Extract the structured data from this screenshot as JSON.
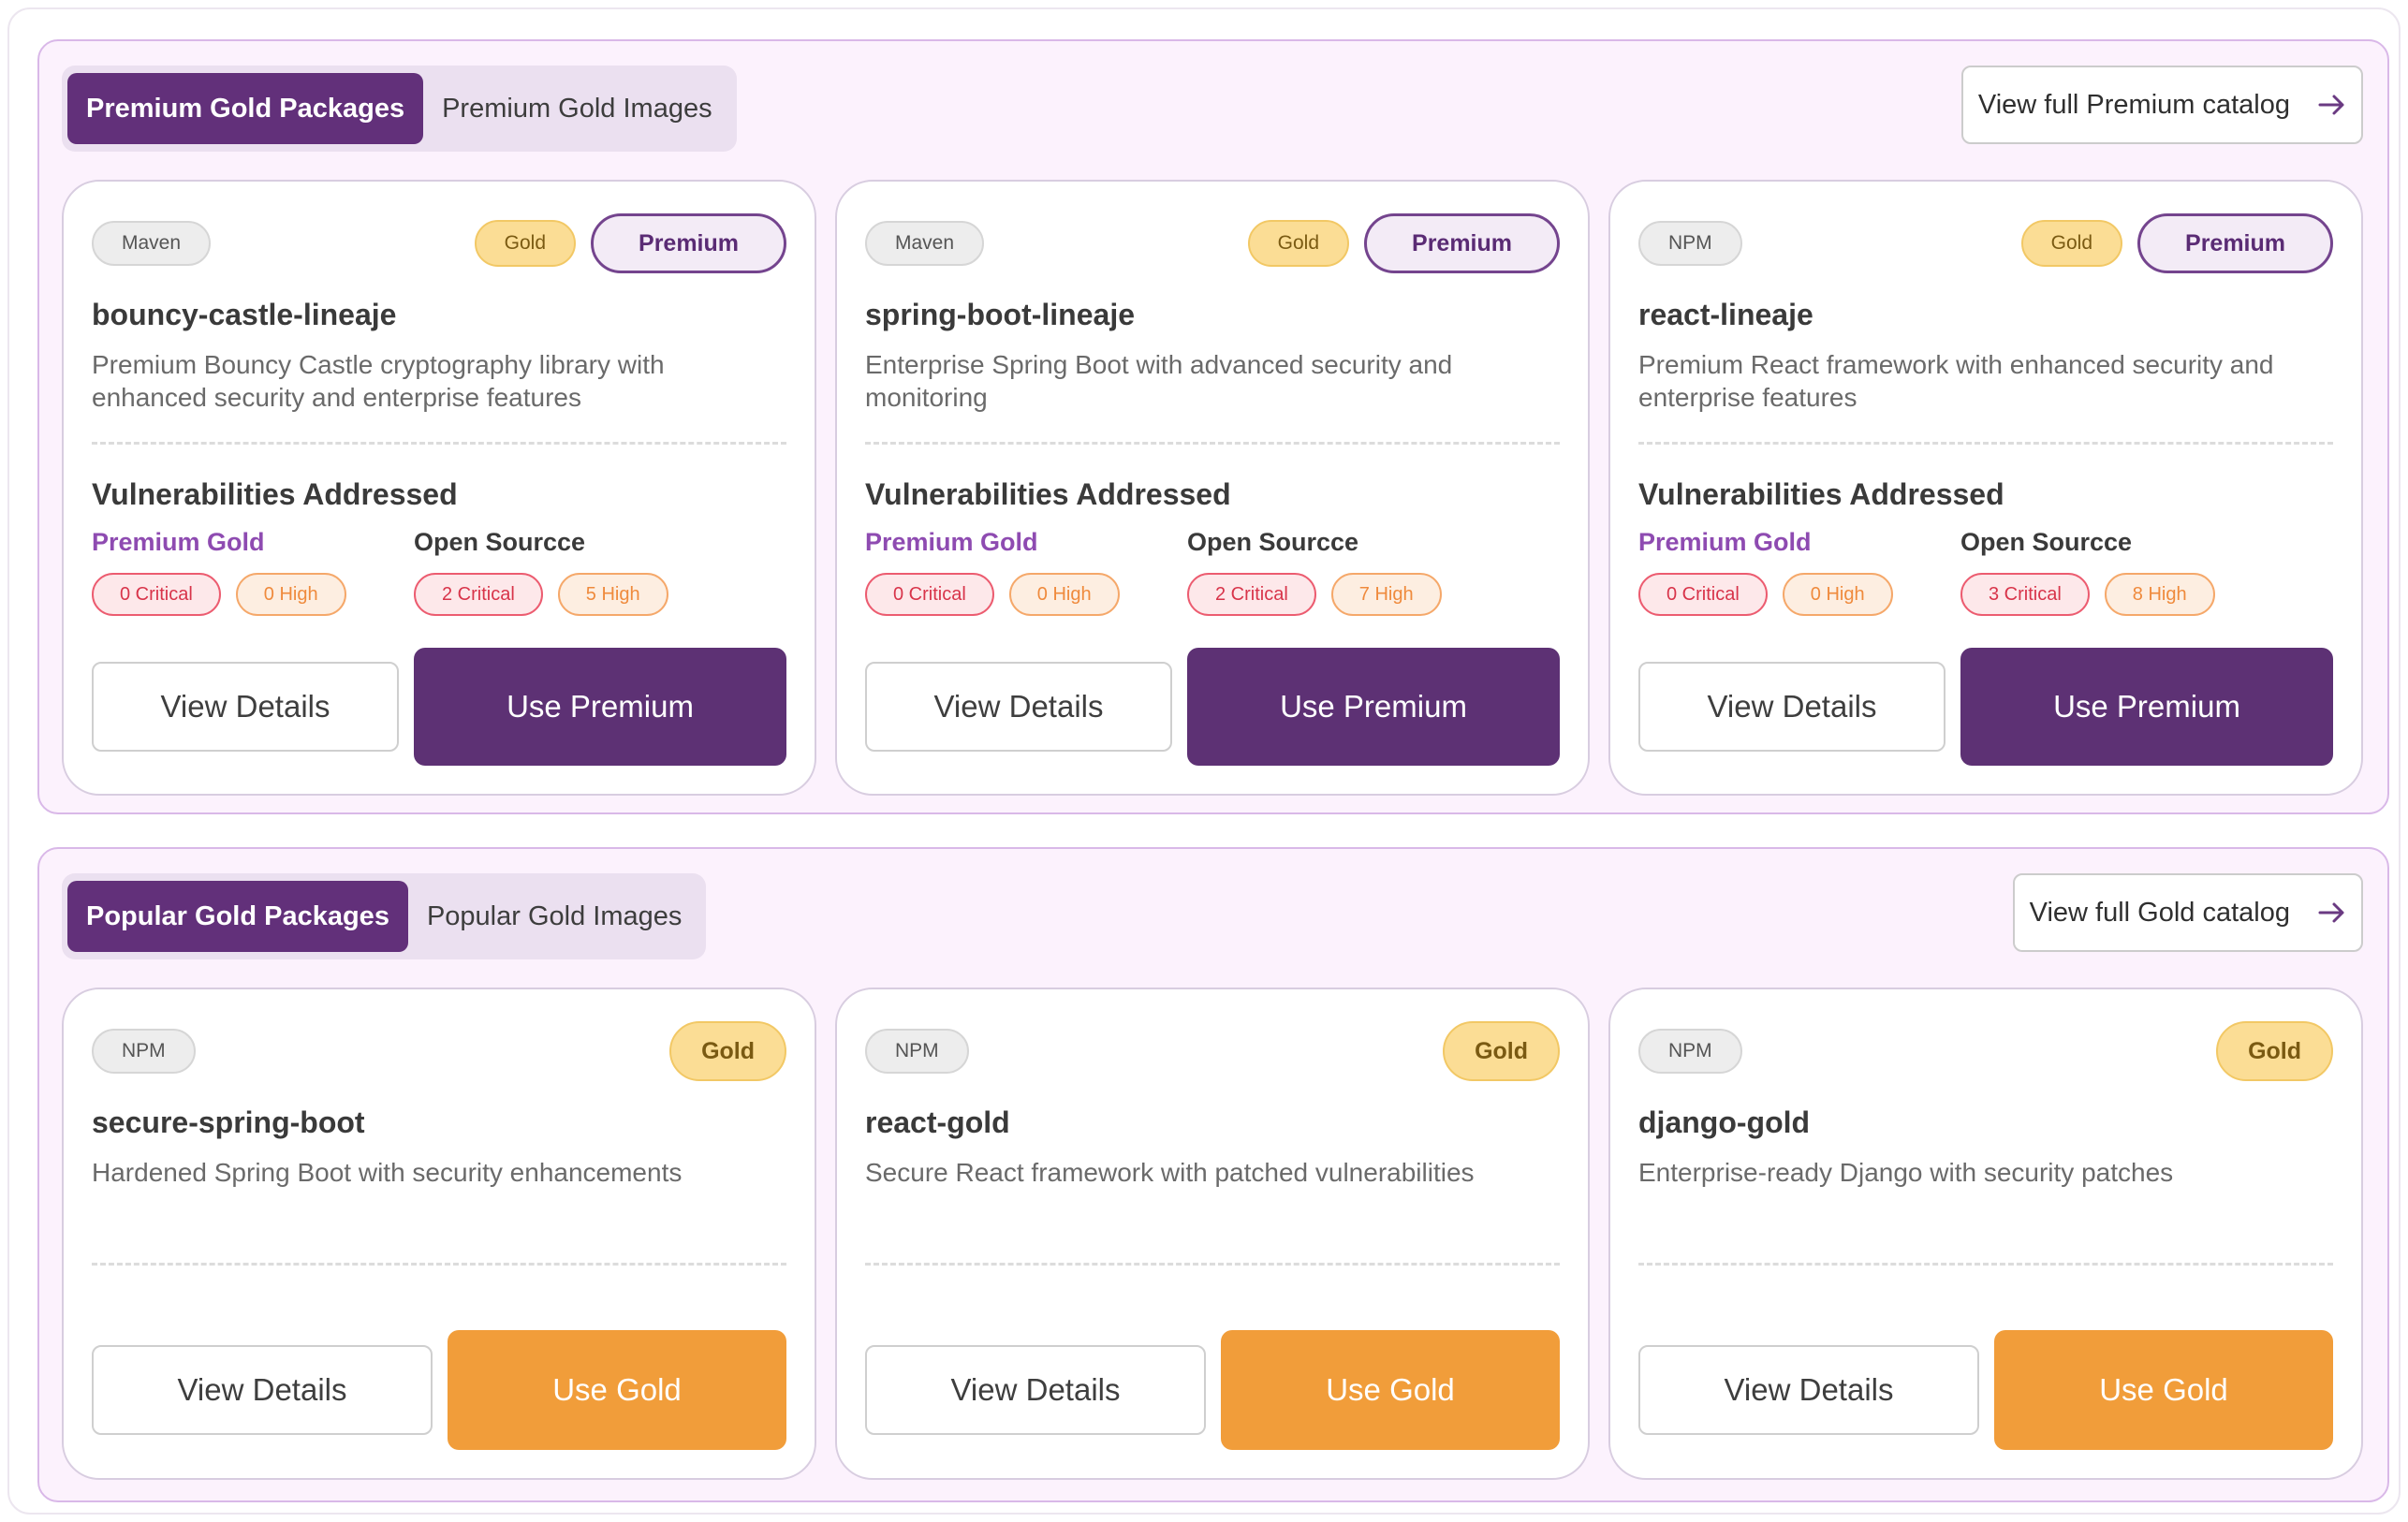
{
  "premium_section": {
    "tabs": [
      {
        "label": "Premium Gold Packages",
        "active": true
      },
      {
        "label": "Premium Gold Images",
        "active": false
      }
    ],
    "catalog_button": "View full Premium catalog",
    "vulnerabilities_title": "Vulnerabilities Addressed",
    "premium_gold_label": "Premium Gold",
    "open_source_label": "Open Sourcce",
    "details_label": "View Details",
    "action_label": "Use Premium",
    "cards": [
      {
        "ecosystem": "Maven",
        "gold_badge": "Gold",
        "premium_badge": "Premium",
        "name": "bouncy-castle-lineaje",
        "description": "Premium Bouncy Castle cryptography library with enhanced security and enterprise features",
        "premium_critical": "0 Critical",
        "premium_high": "0 High",
        "oss_critical": "2 Critical",
        "oss_high": "5 High"
      },
      {
        "ecosystem": "Maven",
        "gold_badge": "Gold",
        "premium_badge": "Premium",
        "name": "spring-boot-lineaje",
        "description": "Enterprise Spring Boot with advanced security and monitoring",
        "premium_critical": "0 Critical",
        "premium_high": "0 High",
        "oss_critical": "2 Critical",
        "oss_high": "7 High"
      },
      {
        "ecosystem": "NPM",
        "gold_badge": "Gold",
        "premium_badge": "Premium",
        "name": "react-lineaje",
        "description": "Premium React framework with enhanced security and enterprise features",
        "premium_critical": "0 Critical",
        "premium_high": "0 High",
        "oss_critical": "3 Critical",
        "oss_high": "8 High"
      }
    ]
  },
  "gold_section": {
    "tabs": [
      {
        "label": "Popular Gold Packages",
        "active": true
      },
      {
        "label": "Popular Gold Images",
        "active": false
      }
    ],
    "catalog_button": "View full Gold catalog",
    "details_label": "View Details",
    "action_label": "Use Gold",
    "cards": [
      {
        "ecosystem": "NPM",
        "gold_badge": "Gold",
        "name": "secure-spring-boot",
        "description": "Hardened Spring Boot with security enhancements"
      },
      {
        "ecosystem": "NPM",
        "gold_badge": "Gold",
        "name": "react-gold",
        "description": "Secure React framework with patched vulnerabilities"
      },
      {
        "ecosystem": "NPM",
        "gold_badge": "Gold",
        "name": "django-gold",
        "description": "Enterprise-ready Django with security patches"
      }
    ]
  },
  "icons": {
    "catalog_arrow": "arrow-right-icon"
  },
  "colors": {
    "primary_purple": "#5d3174",
    "gold_orange": "#f19d3a",
    "critical_red": "#d8344a",
    "high_orange": "#ef8a3c"
  }
}
